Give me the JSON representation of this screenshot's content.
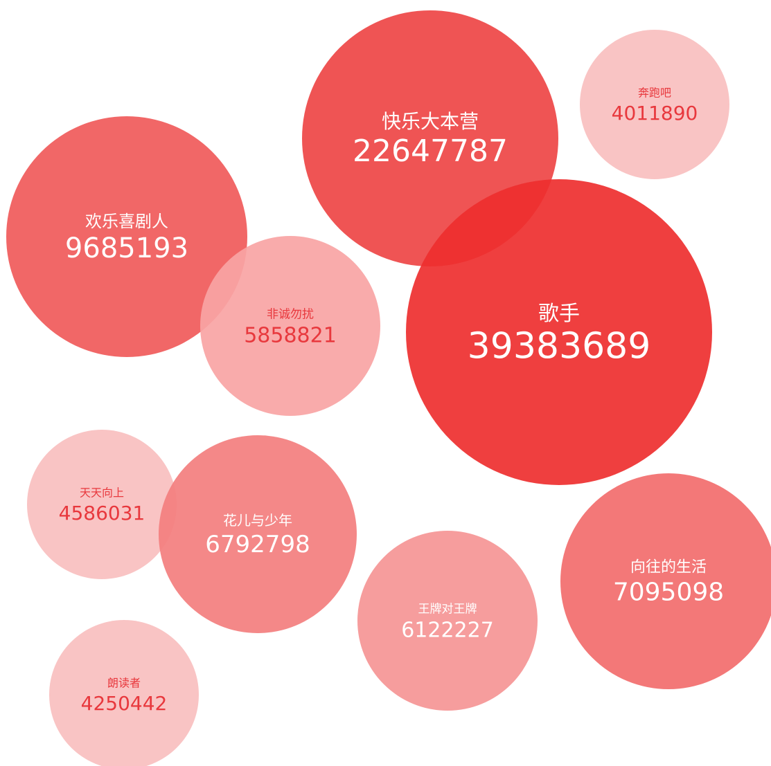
{
  "chart_data": {
    "type": "bubble",
    "categories": [
      "快乐大本营",
      "歌手",
      "欢乐喜剧人",
      "非诚勿扰",
      "奔跑吧",
      "天天向上",
      "花儿与少年",
      "王牌对王牌",
      "向往的生活",
      "朗读者"
    ],
    "values": [
      22647787,
      39383689,
      9685193,
      5858821,
      4011890,
      4586031,
      6792798,
      6122227,
      7095098,
      4250442
    ],
    "colors": [
      "#ee4545",
      "#ee2f2f",
      "#f05a5a",
      "#f8a4a4",
      "#f8bfbf",
      "#f8bfbf",
      "#f37e7e",
      "#f59595",
      "#f26d6d",
      "#f8bfbf"
    ]
  }
}
